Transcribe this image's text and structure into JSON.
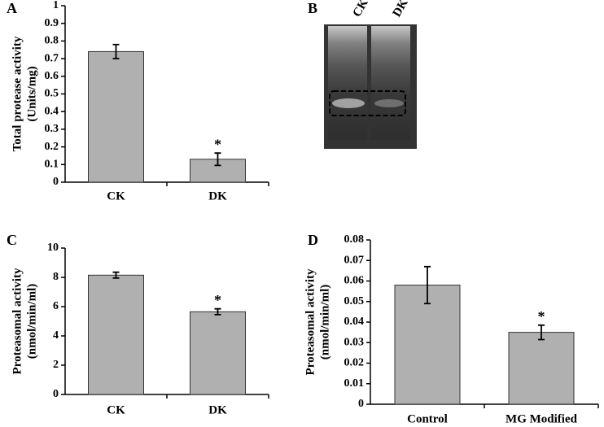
{
  "chart_data": [
    {
      "type": "bar",
      "panel_label": "A",
      "ylabel": [
        "Total protease activity",
        "(Units/mg)"
      ],
      "categories": [
        "CK",
        "DK"
      ],
      "values": [
        0.74,
        0.13
      ],
      "errors": [
        0.04,
        0.035
      ],
      "significance": [
        null,
        "*"
      ],
      "color": "#b0b0b0",
      "ylim": [
        0,
        1
      ],
      "yticks": [
        0,
        0.1,
        0.2,
        0.3,
        0.4,
        0.5,
        0.6,
        0.7,
        0.8,
        0.9,
        1
      ]
    },
    {
      "type": "bar",
      "panel_label": "C",
      "ylabel": [
        "Proteasomal activity",
        "(nmol/min/ml)"
      ],
      "categories": [
        "CK",
        "DK"
      ],
      "values": [
        8.15,
        5.65
      ],
      "errors": [
        0.2,
        0.2
      ],
      "significance": [
        null,
        "*"
      ],
      "color": "#b0b0b0",
      "ylim": [
        0,
        10
      ],
      "yticks": [
        0,
        2,
        4,
        6,
        8,
        10
      ]
    },
    {
      "type": "bar",
      "panel_label": "D",
      "ylabel": [
        "Proteasomal activity",
        "(nmol/min/ml)"
      ],
      "categories": [
        "Control",
        "MG Modified"
      ],
      "values": [
        0.058,
        0.035
      ],
      "errors": [
        0.009,
        0.0035
      ],
      "significance": [
        null,
        "*"
      ],
      "color": "#b0b0b0",
      "ylim": [
        0,
        0.08
      ],
      "yticks": [
        0,
        0.01,
        0.02,
        0.03,
        0.04,
        0.05,
        0.06,
        0.07,
        0.08
      ]
    }
  ],
  "gel": {
    "panel_label": "B",
    "lanes": [
      "CK",
      "DK"
    ]
  }
}
